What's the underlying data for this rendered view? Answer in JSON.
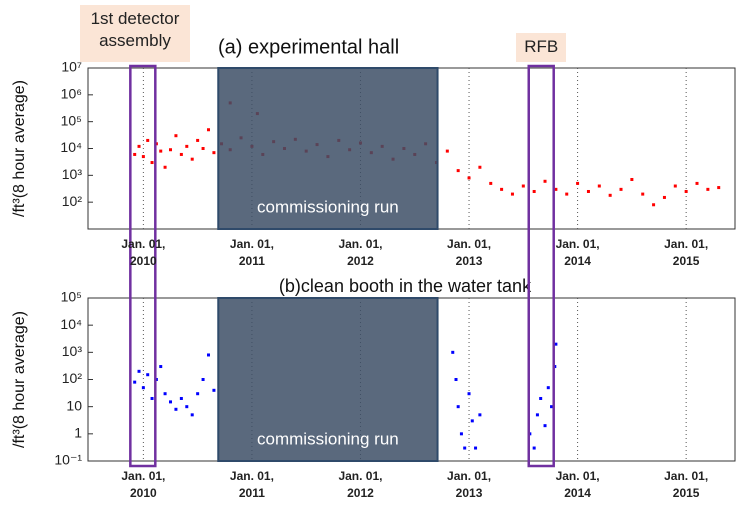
{
  "highlights": [
    {
      "label": "1st detector assembly",
      "start": 2009.88,
      "end": 2010.11
    },
    {
      "label": "RFB",
      "start": 2013.55,
      "end": 2013.78
    }
  ],
  "chart_data": [
    {
      "type": "scatter",
      "title": "(a) experimental hall",
      "y_label": "/ft³(8 hour average)",
      "log_y": true,
      "grid": true,
      "color": "#ff0000",
      "span": {
        "label": "commissioning run",
        "start": 2010.69,
        "end": 2012.71,
        "color": "#3d4f66"
      },
      "xlim": [
        2009.49,
        2015.45
      ],
      "xticks": [
        {
          "value": 2010,
          "label": "Jan. 01, 2010"
        },
        {
          "value": 2011,
          "label": "Jan. 01, 2011"
        },
        {
          "value": 2012,
          "label": "Jan. 01, 2012"
        },
        {
          "value": 2013,
          "label": "Jan. 01, 2013"
        },
        {
          "value": 2014,
          "label": "Jan. 01, 2014"
        },
        {
          "value": 2015,
          "label": "Jan. 01, 2015"
        }
      ],
      "ylim": [
        10,
        10000000
      ],
      "yticks": [
        {
          "value": 100,
          "label": "10²"
        },
        {
          "value": 1000,
          "label": "10³"
        },
        {
          "value": 10000,
          "label": "10⁴"
        },
        {
          "value": 100000,
          "label": "10⁵"
        },
        {
          "value": 1000000,
          "label": "10⁶"
        },
        {
          "value": 10000000,
          "label": "10⁷"
        }
      ],
      "x": [
        2009.92,
        2009.96,
        2010.0,
        2010.04,
        2010.08,
        2010.12,
        2010.16,
        2010.2,
        2010.25,
        2010.3,
        2010.35,
        2010.4,
        2010.45,
        2010.5,
        2010.55,
        2010.6,
        2010.65,
        2010.72,
        2010.8,
        2010.8,
        2010.9,
        2011.0,
        2011.05,
        2011.1,
        2011.2,
        2011.3,
        2011.4,
        2011.5,
        2011.6,
        2011.7,
        2011.8,
        2011.9,
        2012.0,
        2012.1,
        2012.2,
        2012.3,
        2012.4,
        2012.5,
        2012.6,
        2012.7,
        2012.8,
        2012.9,
        2013.0,
        2013.1,
        2013.2,
        2013.3,
        2013.4,
        2013.5,
        2013.6,
        2013.7,
        2013.8,
        2013.9,
        2014.0,
        2014.1,
        2014.2,
        2014.3,
        2014.4,
        2014.5,
        2014.6,
        2014.7,
        2014.8,
        2014.9,
        2015.0,
        2015.1,
        2015.2,
        2015.3
      ],
      "values": [
        6000,
        12000,
        5000,
        20000,
        3000,
        15000,
        8000,
        2000,
        9000,
        30000,
        6000,
        12000,
        4000,
        20000,
        10000,
        50000,
        7000,
        15000,
        9000,
        500000,
        25000,
        12000,
        200000,
        6000,
        18000,
        10000,
        22000,
        8000,
        14000,
        5000,
        20000,
        9000,
        16000,
        7000,
        12000,
        4000,
        10000,
        6000,
        15000,
        3000,
        8000,
        1500,
        800,
        2000,
        500,
        300,
        200,
        400,
        250,
        600,
        300,
        200,
        500,
        250,
        400,
        180,
        300,
        700,
        200,
        80,
        150,
        400,
        250,
        500,
        300,
        350
      ]
    },
    {
      "type": "scatter",
      "title": "(b)clean booth in the water tank",
      "y_label": "/ft³(8 hour average)",
      "log_y": true,
      "grid": true,
      "color": "#0000ff",
      "span": {
        "label": "commissioning run",
        "start": 2010.69,
        "end": 2012.71,
        "color": "#3d4f66"
      },
      "xlim": [
        2009.49,
        2015.45
      ],
      "xticks": [
        {
          "value": 2010,
          "label": "Jan. 01, 2010"
        },
        {
          "value": 2011,
          "label": "Jan. 01, 2011"
        },
        {
          "value": 2012,
          "label": "Jan. 01, 2012"
        },
        {
          "value": 2013,
          "label": "Jan. 01, 2013"
        },
        {
          "value": 2014,
          "label": "Jan. 01, 2014"
        },
        {
          "value": 2015,
          "label": "Jan. 01, 2015"
        }
      ],
      "ylim": [
        0.1,
        100000
      ],
      "yticks": [
        {
          "value": 0.1,
          "label": "10⁻¹"
        },
        1,
        10,
        {
          "value": 100,
          "label": "10²"
        },
        {
          "value": 1000,
          "label": "10³"
        },
        {
          "value": 10000,
          "label": "10⁴"
        },
        {
          "value": 100000,
          "label": "10⁵"
        }
      ],
      "x": [
        2009.92,
        2009.96,
        2010.0,
        2010.04,
        2010.08,
        2010.12,
        2010.16,
        2010.2,
        2010.25,
        2010.3,
        2010.35,
        2010.4,
        2010.45,
        2010.5,
        2010.55,
        2010.6,
        2010.65,
        2012.85,
        2012.88,
        2012.9,
        2012.93,
        2012.96,
        2013.0,
        2013.03,
        2013.06,
        2013.1,
        2013.56,
        2013.6,
        2013.63,
        2013.66,
        2013.7,
        2013.73,
        2013.76,
        2013.79,
        2013.8
      ],
      "values": [
        80,
        200,
        50,
        150,
        20,
        100,
        300,
        30,
        15,
        8,
        20,
        10,
        5,
        30,
        100,
        800,
        40,
        1000,
        100,
        10,
        1,
        0.3,
        30,
        3,
        0.3,
        5,
        1,
        0.3,
        5,
        20,
        2,
        50,
        10,
        300,
        2000
      ]
    }
  ]
}
